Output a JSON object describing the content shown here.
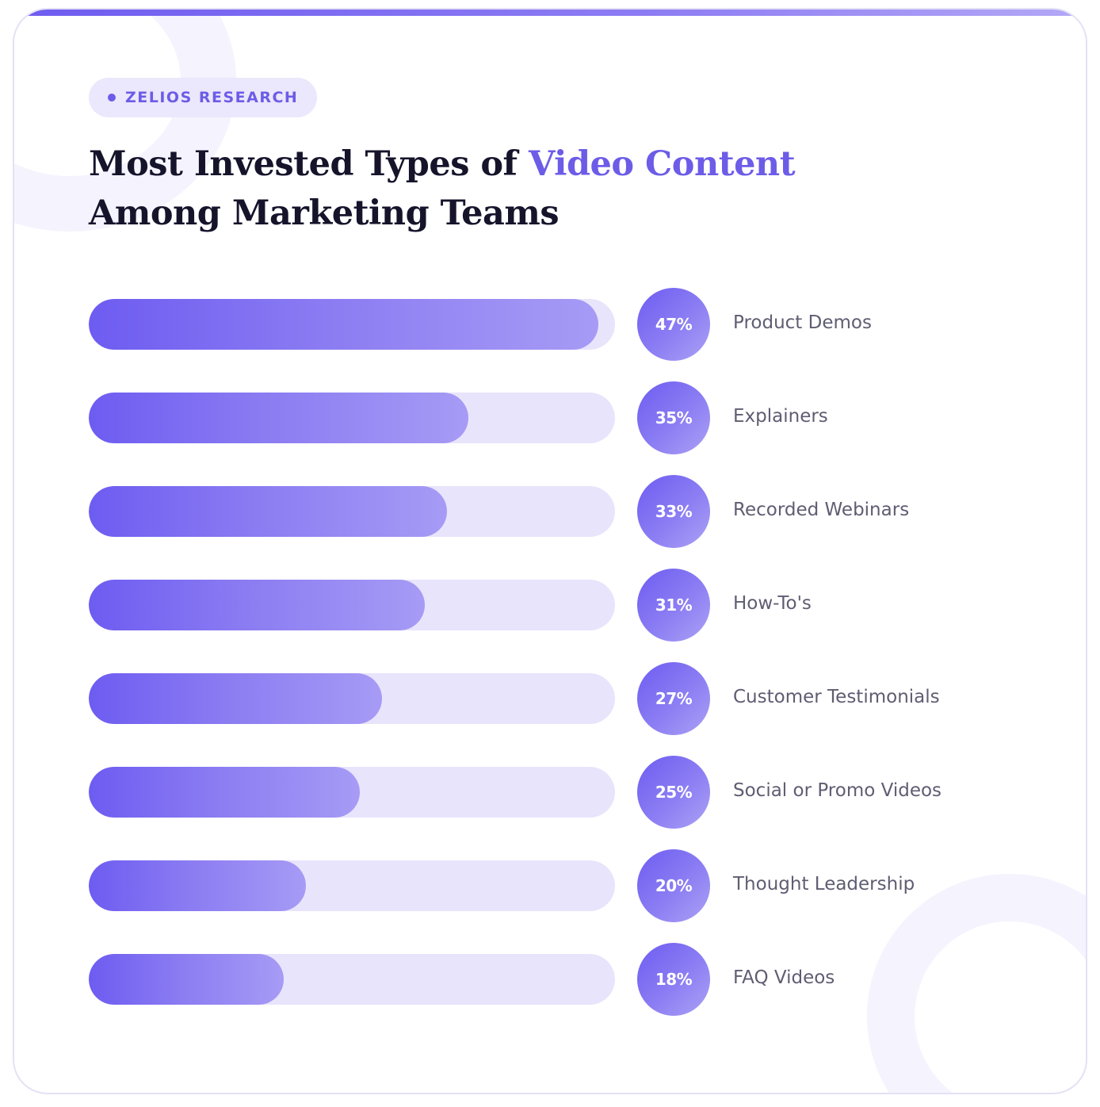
{
  "badge": {
    "label": "ZELIOS RESEARCH"
  },
  "title": {
    "part1": "Most Invested Types of ",
    "accent": "Video Content",
    "part2": "Among Marketing Teams"
  },
  "colors": {
    "accent": "#6c5ce7",
    "track": "#e8e4fc",
    "title": "#16142b",
    "label": "#5f5d72"
  },
  "chart_data": {
    "type": "bar",
    "orientation": "horizontal",
    "categories": [
      "Product Demos",
      "Explainers",
      "Recorded Webinars",
      "How-To's",
      "Customer Testimonials",
      "Social or Promo Videos",
      "Thought Leadership",
      "FAQ Videos"
    ],
    "values": [
      47,
      35,
      33,
      31,
      27,
      25,
      20,
      18
    ],
    "value_labels": [
      "47%",
      "35%",
      "33%",
      "31%",
      "27%",
      "25%",
      "20%",
      "18%"
    ],
    "unit": "%",
    "xlim": [
      0,
      48.5
    ],
    "grid": false,
    "legend": "none"
  }
}
